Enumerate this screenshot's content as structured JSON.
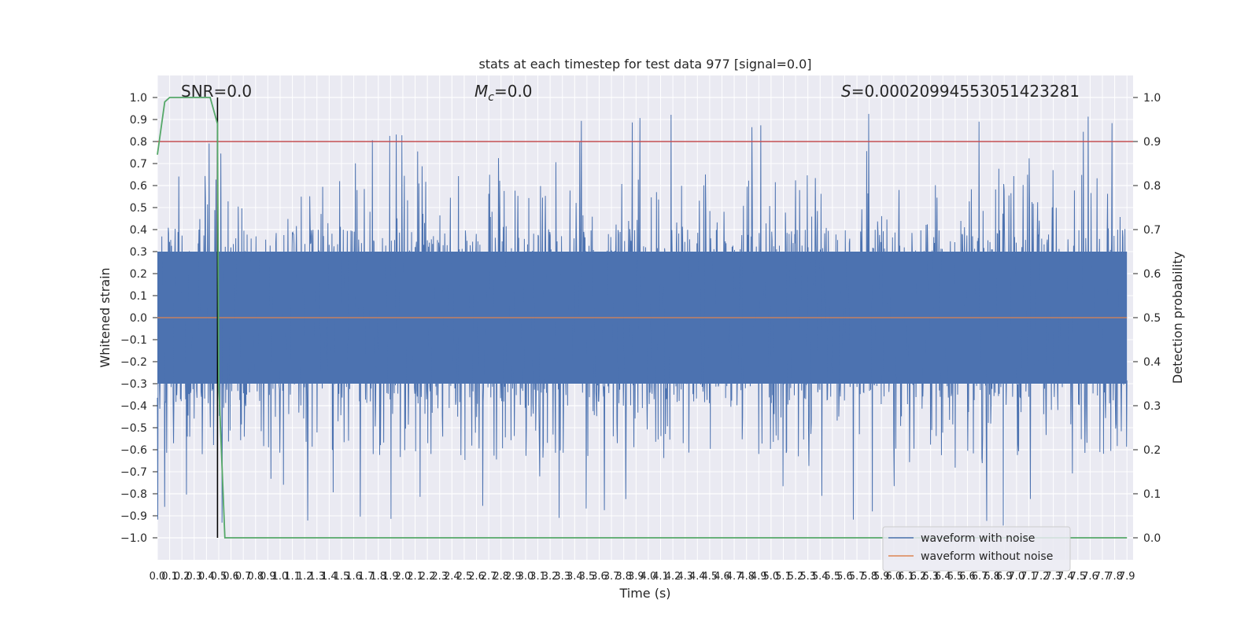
{
  "chart_data": {
    "type": "line",
    "title": "stats at each timestep for test data 977 [signal=0.0]",
    "xlabel": "Time (s)",
    "ylabel": "Whitened strain",
    "y2label": "Detection probability",
    "xlim": [
      0.0,
      7.95
    ],
    "ylim": [
      -1.1,
      1.1
    ],
    "y2lim": [
      -0.05,
      1.05
    ],
    "x_ticks": [
      0.0,
      0.1,
      0.2,
      0.3,
      0.4,
      0.5,
      0.6,
      0.7,
      0.8,
      0.9,
      1.0,
      1.1,
      1.2,
      1.3,
      1.4,
      1.5,
      1.6,
      1.7,
      1.8,
      1.9,
      2.0,
      2.1,
      2.2,
      2.3,
      2.4,
      2.5,
      2.6,
      2.7,
      2.8,
      2.9,
      3.0,
      3.1,
      3.2,
      3.3,
      3.4,
      3.5,
      3.6,
      3.7,
      3.8,
      3.9,
      4.0,
      4.1,
      4.2,
      4.3,
      4.4,
      4.5,
      4.6,
      4.7,
      4.8,
      4.9,
      5.0,
      5.1,
      5.2,
      5.3,
      5.4,
      5.5,
      5.6,
      5.7,
      5.8,
      5.9,
      6.0,
      6.1,
      6.2,
      6.3,
      6.4,
      6.5,
      6.6,
      6.7,
      6.8,
      6.9,
      7.0,
      7.1,
      7.2,
      7.3,
      7.4,
      7.5,
      7.6,
      7.7,
      7.8,
      7.9
    ],
    "y_ticks": [
      -1.0,
      -0.9,
      -0.8,
      -0.7,
      -0.6,
      -0.5,
      -0.4,
      -0.3,
      -0.2,
      -0.1,
      0.0,
      0.1,
      0.2,
      0.3,
      0.4,
      0.5,
      0.6,
      0.7,
      0.8,
      0.9,
      1.0
    ],
    "y2_ticks": [
      0.0,
      0.1,
      0.2,
      0.3,
      0.4,
      0.5,
      0.6,
      0.7,
      0.8,
      0.9,
      1.0
    ],
    "annotations": {
      "snr": "SNR=0.0",
      "mc_symbol": "M",
      "mc_sub": "c",
      "mc_value": "=0.0",
      "s_symbol": "S",
      "s_value": "=0.00020994553051423281"
    },
    "threshold": 0.9,
    "vline_x": 0.49,
    "series": [
      {
        "name": "waveform with noise",
        "color": "#4c72b0",
        "noise_amplitude": 1.0
      },
      {
        "name": "waveform without noise",
        "color": "#dd8452",
        "values": "constant 0.0"
      },
      {
        "color": "#55a868",
        "x": [
          0.0,
          0.06,
          0.1,
          0.2,
          0.3,
          0.43,
          0.49,
          0.5,
          0.55,
          7.9
        ],
        "values": [
          0.87,
          0.99,
          1.0,
          1.0,
          1.0,
          1.0,
          0.94,
          0.35,
          0.0,
          0.0
        ]
      },
      {
        "color": "#c44e52",
        "values": "constant 0.9"
      }
    ],
    "grid": true,
    "legend_position": "lower right"
  }
}
